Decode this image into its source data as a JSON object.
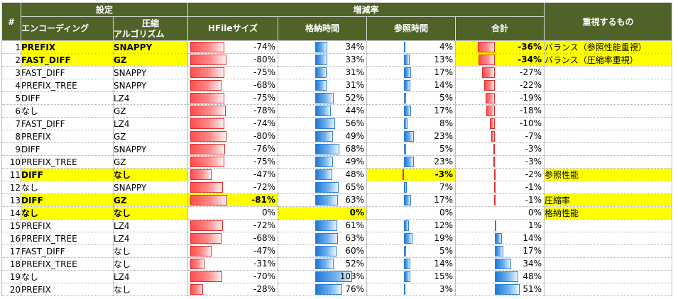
{
  "headers": {
    "index": "#",
    "settings": "設定",
    "encoding": "エンコーディング",
    "compression_line1": "圧縮",
    "compression_line2": "アルゴリズム",
    "change_rate": "増減率",
    "hfile": "HFileサイズ",
    "storage": "格納時間",
    "reference": "参照時間",
    "total": "合計",
    "priority": "重視するもの"
  },
  "colors": {
    "header_bg": "#4f6228",
    "highlight": "#ffff00",
    "red_bar": "#ff4d4d",
    "blue_bar": "#1f78d8"
  },
  "rows": [
    {
      "no": "1",
      "enc": "PREFIX",
      "comp": "SNAPPY",
      "hfile": -74,
      "hfile_t": "-74%",
      "store": 34,
      "store_t": "34%",
      "ref": 4,
      "ref_t": "4%",
      "total": -36,
      "total_t": "-36%",
      "note": "バランス（参照性能重視）",
      "hl": true,
      "hl_hfile": false,
      "hl_store": false,
      "hl_ref": false,
      "hl_total": true
    },
    {
      "no": "2",
      "enc": "FAST_DIFF",
      "comp": "GZ",
      "hfile": -80,
      "hfile_t": "-80%",
      "store": 33,
      "store_t": "33%",
      "ref": 13,
      "ref_t": "13%",
      "total": -34,
      "total_t": "-34%",
      "note": "バランス（圧縮率重視）",
      "hl": true,
      "hl_hfile": false,
      "hl_store": false,
      "hl_ref": false,
      "hl_total": true
    },
    {
      "no": "3",
      "enc": "FAST_DIFF",
      "comp": "SNAPPY",
      "hfile": -75,
      "hfile_t": "-75%",
      "store": 31,
      "store_t": "31%",
      "ref": 17,
      "ref_t": "17%",
      "total": -27,
      "total_t": "-27%",
      "note": "",
      "hl": false
    },
    {
      "no": "4",
      "enc": "PREFIX_TREE",
      "comp": "SNAPPY",
      "hfile": -68,
      "hfile_t": "-68%",
      "store": 31,
      "store_t": "31%",
      "ref": 14,
      "ref_t": "14%",
      "total": -22,
      "total_t": "-22%",
      "note": "",
      "hl": false
    },
    {
      "no": "5",
      "enc": "DIFF",
      "comp": "LZ4",
      "hfile": -75,
      "hfile_t": "-75%",
      "store": 52,
      "store_t": "52%",
      "ref": 5,
      "ref_t": "5%",
      "total": -19,
      "total_t": "-19%",
      "note": "",
      "hl": false
    },
    {
      "no": "6",
      "enc": "なし",
      "comp": "GZ",
      "hfile": -78,
      "hfile_t": "-78%",
      "store": 44,
      "store_t": "44%",
      "ref": 17,
      "ref_t": "17%",
      "total": -18,
      "total_t": "-18%",
      "note": "",
      "hl": false
    },
    {
      "no": "7",
      "enc": "FAST_DIFF",
      "comp": "LZ4",
      "hfile": -74,
      "hfile_t": "-74%",
      "store": 56,
      "store_t": "56%",
      "ref": 8,
      "ref_t": "8%",
      "total": -10,
      "total_t": "-10%",
      "note": "",
      "hl": false
    },
    {
      "no": "8",
      "enc": "PREFIX",
      "comp": "GZ",
      "hfile": -80,
      "hfile_t": "-80%",
      "store": 49,
      "store_t": "49%",
      "ref": 23,
      "ref_t": "23%",
      "total": -7,
      "total_t": "-7%",
      "note": "",
      "hl": false
    },
    {
      "no": "9",
      "enc": "DIFF",
      "comp": "SNAPPY",
      "hfile": -76,
      "hfile_t": "-76%",
      "store": 68,
      "store_t": "68%",
      "ref": 5,
      "ref_t": "5%",
      "total": -3,
      "total_t": "-3%",
      "note": "",
      "hl": false
    },
    {
      "no": "10",
      "enc": "PREFIX_TREE",
      "comp": "GZ",
      "hfile": -75,
      "hfile_t": "-75%",
      "store": 49,
      "store_t": "49%",
      "ref": 23,
      "ref_t": "23%",
      "total": -3,
      "total_t": "-3%",
      "note": "",
      "hl": false
    },
    {
      "no": "11",
      "enc": "DIFF",
      "comp": "なし",
      "hfile": -47,
      "hfile_t": "-47%",
      "store": 48,
      "store_t": "48%",
      "ref": -3,
      "ref_t": "-3%",
      "total": -2,
      "total_t": "-2%",
      "note": "参照性能",
      "hl": true,
      "hl_hfile": false,
      "hl_store": false,
      "hl_ref": true,
      "hl_total": false
    },
    {
      "no": "12",
      "enc": "なし",
      "comp": "SNAPPY",
      "hfile": -72,
      "hfile_t": "-72%",
      "store": 65,
      "store_t": "65%",
      "ref": 7,
      "ref_t": "7%",
      "total": -1,
      "total_t": "-1%",
      "note": "",
      "hl": false
    },
    {
      "no": "13",
      "enc": "DIFF",
      "comp": "GZ",
      "hfile": -81,
      "hfile_t": "-81%",
      "store": 63,
      "store_t": "63%",
      "ref": 17,
      "ref_t": "17%",
      "total": -1,
      "total_t": "-1%",
      "note": "圧縮率",
      "hl": true,
      "hl_hfile": true,
      "hl_store": false,
      "hl_ref": false,
      "hl_total": false
    },
    {
      "no": "14",
      "enc": "なし",
      "comp": "なし",
      "hfile": 0,
      "hfile_t": "0%",
      "store": 0,
      "store_t": "0%",
      "ref": 0,
      "ref_t": "0%",
      "total": 0,
      "total_t": "0%",
      "note": "格納性能",
      "hl": true,
      "hl_hfile": false,
      "hl_store": true,
      "hl_ref": false,
      "hl_total": false
    },
    {
      "no": "15",
      "enc": "PREFIX",
      "comp": "LZ4",
      "hfile": -72,
      "hfile_t": "-72%",
      "store": 61,
      "store_t": "61%",
      "ref": 12,
      "ref_t": "12%",
      "total": 1,
      "total_t": "1%",
      "note": "",
      "hl": false
    },
    {
      "no": "16",
      "enc": "PREFIX_TREE",
      "comp": "LZ4",
      "hfile": -68,
      "hfile_t": "-68%",
      "store": 63,
      "store_t": "63%",
      "ref": 19,
      "ref_t": "19%",
      "total": 14,
      "total_t": "14%",
      "note": "",
      "hl": false
    },
    {
      "no": "17",
      "enc": "FAST_DIFF",
      "comp": "なし",
      "hfile": -47,
      "hfile_t": "-47%",
      "store": 60,
      "store_t": "60%",
      "ref": 5,
      "ref_t": "5%",
      "total": 17,
      "total_t": "17%",
      "note": "",
      "hl": false
    },
    {
      "no": "18",
      "enc": "PREFIX_TREE",
      "comp": "なし",
      "hfile": -31,
      "hfile_t": "-31%",
      "store": 52,
      "store_t": "52%",
      "ref": 14,
      "ref_t": "14%",
      "total": 34,
      "total_t": "34%",
      "note": "",
      "hl": false
    },
    {
      "no": "19",
      "enc": "なし",
      "comp": "LZ4",
      "hfile": -70,
      "hfile_t": "-70%",
      "store": 103,
      "store_t": "103%",
      "ref": 15,
      "ref_t": "15%",
      "total": 48,
      "total_t": "48%",
      "note": "",
      "hl": false
    },
    {
      "no": "20",
      "enc": "PREFIX",
      "comp": "なし",
      "hfile": -28,
      "hfile_t": "-28%",
      "store": 76,
      "store_t": "76%",
      "ref": 3,
      "ref_t": "3%",
      "total": 51,
      "total_t": "51%",
      "note": "",
      "hl": false
    }
  ]
}
